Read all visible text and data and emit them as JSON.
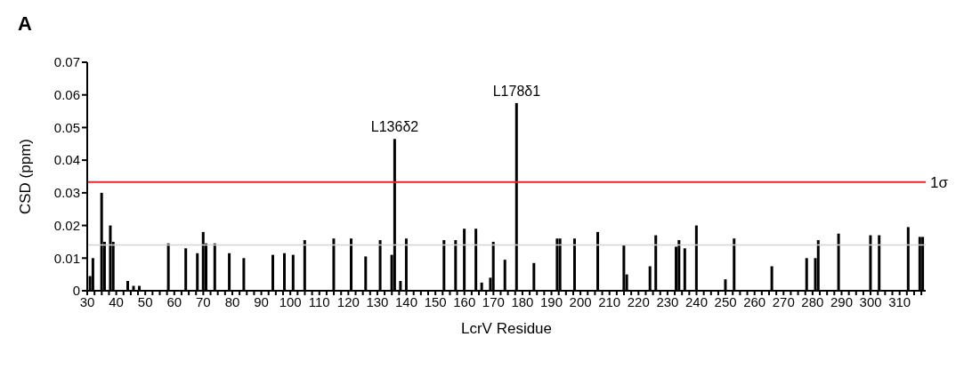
{
  "chart_data": {
    "type": "bar",
    "title": "A",
    "xlabel": "LcrV Residue",
    "ylabel": "CSD (ppm)",
    "x": [
      31,
      32,
      35,
      36,
      38,
      39,
      44,
      46,
      48,
      58,
      64,
      68,
      70,
      71,
      74,
      79,
      84,
      94,
      98,
      101,
      105,
      115,
      121,
      126,
      131,
      135,
      136,
      138,
      140,
      153,
      157,
      160,
      164,
      166,
      169,
      170,
      174,
      178,
      184,
      192,
      193,
      198,
      206,
      215,
      216,
      224,
      226,
      233,
      234,
      236,
      240,
      250,
      253,
      266,
      278,
      281,
      282,
      289,
      300,
      303,
      313,
      317,
      318
    ],
    "values": [
      0.0045,
      0.01,
      0.03,
      0.015,
      0.02,
      0.015,
      0.003,
      0.0015,
      0.0015,
      0.0145,
      0.013,
      0.0115,
      0.018,
      0.0145,
      0.0145,
      0.0115,
      0.01,
      0.011,
      0.0115,
      0.011,
      0.0155,
      0.016,
      0.016,
      0.0105,
      0.0155,
      0.011,
      0.0465,
      0.003,
      0.016,
      0.0155,
      0.0155,
      0.019,
      0.019,
      0.0025,
      0.004,
      0.015,
      0.0095,
      0.0575,
      0.0085,
      0.016,
      0.016,
      0.016,
      0.018,
      0.014,
      0.005,
      0.0075,
      0.017,
      0.0135,
      0.0155,
      0.013,
      0.02,
      0.0035,
      0.016,
      0.0075,
      0.01,
      0.01,
      0.0155,
      0.0175,
      0.017,
      0.017,
      0.0195,
      0.0165,
      0.0165
    ],
    "color": "#000000",
    "xlim": [
      30,
      319
    ],
    "xticks": [
      30,
      {
        "value": 32.5,
        "label": null
      },
      {
        "value": 35,
        "label": null
      },
      {
        "value": 37.5,
        "label": null
      },
      40,
      {
        "value": 42.5,
        "label": null
      },
      {
        "value": 45,
        "label": null
      },
      {
        "value": 47.5,
        "label": null
      },
      50,
      {
        "value": 52.5,
        "label": null
      },
      {
        "value": 55,
        "label": null
      },
      {
        "value": 57.5,
        "label": null
      },
      60,
      {
        "value": 62.5,
        "label": null
      },
      {
        "value": 65,
        "label": null
      },
      {
        "value": 67.5,
        "label": null
      },
      70,
      {
        "value": 72.5,
        "label": null
      },
      {
        "value": 75,
        "label": null
      },
      {
        "value": 77.5,
        "label": null
      },
      80,
      {
        "value": 82.5,
        "label": null
      },
      {
        "value": 85,
        "label": null
      },
      {
        "value": 87.5,
        "label": null
      },
      90,
      {
        "value": 92.5,
        "label": null
      },
      {
        "value": 95,
        "label": null
      },
      {
        "value": 97.5,
        "label": null
      },
      100,
      {
        "value": 102.5,
        "label": null
      },
      {
        "value": 105,
        "label": null
      },
      {
        "value": 107.5,
        "label": null
      },
      110,
      {
        "value": 112.5,
        "label": null
      },
      {
        "value": 115,
        "label": null
      },
      {
        "value": 117.5,
        "label": null
      },
      120,
      {
        "value": 122.5,
        "label": null
      },
      {
        "value": 125,
        "label": null
      },
      {
        "value": 127.5,
        "label": null
      },
      130,
      {
        "value": 132.5,
        "label": null
      },
      {
        "value": 135,
        "label": null
      },
      {
        "value": 137.5,
        "label": null
      },
      140,
      {
        "value": 142.5,
        "label": null
      },
      {
        "value": 145,
        "label": null
      },
      {
        "value": 147.5,
        "label": null
      },
      150,
      {
        "value": 152.5,
        "label": null
      },
      {
        "value": 155,
        "label": null
      },
      {
        "value": 157.5,
        "label": null
      },
      160,
      {
        "value": 162.5,
        "label": null
      },
      {
        "value": 165,
        "label": null
      },
      {
        "value": 167.5,
        "label": null
      },
      170,
      {
        "value": 172.5,
        "label": null
      },
      {
        "value": 175,
        "label": null
      },
      {
        "value": 177.5,
        "label": null
      },
      180,
      {
        "value": 182.5,
        "label": null
      },
      {
        "value": 185,
        "label": null
      },
      {
        "value": 187.5,
        "label": null
      },
      190,
      {
        "value": 192.5,
        "label": null
      },
      {
        "value": 195,
        "label": null
      },
      {
        "value": 197.5,
        "label": null
      },
      200,
      {
        "value": 202.5,
        "label": null
      },
      {
        "value": 205,
        "label": null
      },
      {
        "value": 207.5,
        "label": null
      },
      210,
      {
        "value": 212.5,
        "label": null
      },
      {
        "value": 215,
        "label": null
      },
      {
        "value": 217.5,
        "label": null
      },
      220,
      {
        "value": 222.5,
        "label": null
      },
      {
        "value": 225,
        "label": null
      },
      {
        "value": 227.5,
        "label": null
      },
      230,
      {
        "value": 232.5,
        "label": null
      },
      {
        "value": 235,
        "label": null
      },
      {
        "value": 237.5,
        "label": null
      },
      240,
      {
        "value": 242.5,
        "label": null
      },
      {
        "value": 245,
        "label": null
      },
      {
        "value": 247.5,
        "label": null
      },
      250,
      {
        "value": 252.5,
        "label": null
      },
      {
        "value": 255,
        "label": null
      },
      {
        "value": 257.5,
        "label": null
      },
      260,
      {
        "value": 262.5,
        "label": null
      },
      {
        "value": 265,
        "label": null
      },
      {
        "value": 267.5,
        "label": null
      },
      270,
      {
        "value": 272.5,
        "label": null
      },
      {
        "value": 275,
        "label": null
      },
      {
        "value": 277.5,
        "label": null
      },
      280,
      {
        "value": 282.5,
        "label": null
      },
      {
        "value": 285,
        "label": null
      },
      {
        "value": 287.5,
        "label": null
      },
      290,
      {
        "value": 292.5,
        "label": null
      },
      {
        "value": 295,
        "label": null
      },
      {
        "value": 297.5,
        "label": null
      },
      300,
      {
        "value": 302.5,
        "label": null
      },
      {
        "value": 305,
        "label": null
      },
      {
        "value": 307.5,
        "label": null
      },
      310,
      {
        "value": 312.5,
        "label": null
      },
      {
        "value": 315,
        "label": null
      },
      {
        "value": 317.5,
        "label": null
      }
    ],
    "ylim": [
      0,
      0.07
    ],
    "yticks": [
      0,
      0.01,
      0.02,
      0.03,
      0.04,
      0.05,
      0.06,
      0.07
    ],
    "ref_lines": [
      {
        "axis": "y",
        "value": 0.0333,
        "label": "1σ",
        "color": "#e8262a"
      },
      {
        "axis": "y",
        "value": 0.014,
        "label": null,
        "color": "#d4d4d4"
      }
    ],
    "annotations": [
      {
        "text": "L136δ2",
        "x": 136,
        "y": 0.0465
      },
      {
        "text": "L178δ1",
        "x": 178,
        "y": 0.0575
      }
    ]
  }
}
